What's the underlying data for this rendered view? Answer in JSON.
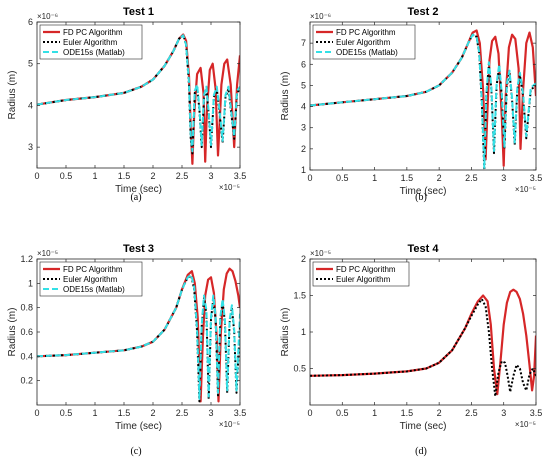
{
  "series_styles": {
    "FD PC Algorithm": {
      "color": "#d62728",
      "dash": "",
      "width": 2.2
    },
    "Euler Algorithm": {
      "color": "#000000",
      "dash": "2,2",
      "width": 2.0
    },
    "ODE15s (Matlab)": {
      "color": "#33e0e6",
      "dash": "6,3",
      "width": 2.0
    }
  },
  "chart_data": [
    {
      "type": "line",
      "title": "Test 1",
      "caption": "(a)",
      "xlabel": "Time (sec)",
      "ylabel": "Radius (m)",
      "x_exponent_label": "×10⁻⁵",
      "y_exponent_label": "×10⁻⁶",
      "xlim": [
        0,
        3.5
      ],
      "ylim": [
        2.5,
        6
      ],
      "xticks": [
        0,
        0.5,
        1,
        1.5,
        2,
        2.5,
        3,
        3.5
      ],
      "xtick_labels": [
        "0",
        "0.5",
        "1",
        "1.5",
        "2",
        "2.5",
        "3",
        "3.5"
      ],
      "yticks": [
        3,
        4,
        5,
        6
      ],
      "ytick_labels": [
        "3",
        "4",
        "5",
        "6"
      ],
      "legend": "top-left",
      "series": [
        {
          "name": "FD PC Algorithm",
          "x": [
            0,
            0.5,
            1,
            1.5,
            1.8,
            2.0,
            2.2,
            2.35,
            2.45,
            2.52,
            2.57,
            2.62,
            2.65,
            2.68,
            2.71,
            2.76,
            2.82,
            2.87,
            2.9,
            2.93,
            2.98,
            3.03,
            3.08,
            3.12,
            3.15,
            3.18,
            3.23,
            3.28,
            3.34,
            3.4,
            3.45,
            3.5
          ],
          "y": [
            4.02,
            4.13,
            4.2,
            4.3,
            4.45,
            4.62,
            4.95,
            5.3,
            5.6,
            5.7,
            5.55,
            4.7,
            3.5,
            2.6,
            3.8,
            4.75,
            4.9,
            4.3,
            2.65,
            3.9,
            4.85,
            5.0,
            4.4,
            2.8,
            3.6,
            4.5,
            5.0,
            5.1,
            4.5,
            3.0,
            4.5,
            5.2
          ]
        },
        {
          "name": "Euler Algorithm",
          "x": [
            0,
            0.5,
            1,
            1.5,
            1.8,
            2.0,
            2.2,
            2.35,
            2.45,
            2.52,
            2.57,
            2.62,
            2.65,
            2.68,
            2.72,
            2.76,
            2.8,
            2.84,
            2.88,
            2.92,
            2.96,
            3.0,
            3.05,
            3.1,
            3.15,
            3.2,
            3.25,
            3.3,
            3.35,
            3.4,
            3.45,
            3.5
          ],
          "y": [
            4.02,
            4.13,
            4.2,
            4.3,
            4.45,
            4.62,
            4.95,
            5.3,
            5.6,
            5.68,
            5.45,
            4.5,
            3.2,
            2.85,
            4.3,
            4.45,
            3.9,
            3.0,
            4.2,
            4.4,
            3.8,
            3.0,
            4.2,
            4.4,
            3.8,
            3.1,
            4.2,
            4.4,
            3.8,
            3.2,
            4.3,
            4.4
          ]
        },
        {
          "name": "ODE15s (Matlab)",
          "x": [
            0,
            0.5,
            1,
            1.5,
            1.8,
            2.0,
            2.2,
            2.35,
            2.45,
            2.52,
            2.57,
            2.62,
            2.65,
            2.68,
            2.72,
            2.76,
            2.8,
            2.84,
            2.88,
            2.92,
            2.96,
            3.0,
            3.05,
            3.1,
            3.15,
            3.2,
            3.25,
            3.3,
            3.35,
            3.4,
            3.45,
            3.5
          ],
          "y": [
            4.02,
            4.13,
            4.2,
            4.3,
            4.45,
            4.62,
            4.95,
            5.3,
            5.6,
            5.68,
            5.45,
            4.55,
            3.3,
            2.9,
            4.35,
            4.5,
            3.95,
            3.05,
            4.25,
            4.45,
            3.85,
            3.05,
            4.25,
            4.45,
            3.85,
            3.15,
            4.25,
            4.45,
            3.85,
            3.25,
            4.35,
            4.45
          ]
        }
      ]
    },
    {
      "type": "line",
      "title": "Test 2",
      "caption": "(b)",
      "xlabel": "Time (sec)",
      "ylabel": "Radius (m)",
      "x_exponent_label": "×10⁻⁵",
      "y_exponent_label": "×10⁻⁶",
      "xlim": [
        0,
        3.5
      ],
      "ylim": [
        1,
        8
      ],
      "xticks": [
        0,
        0.5,
        1,
        1.5,
        2,
        2.5,
        3,
        3.5
      ],
      "xtick_labels": [
        "0",
        "0.5",
        "1",
        "1.5",
        "2",
        "2.5",
        "3",
        "3.5"
      ],
      "yticks": [
        1,
        2,
        3,
        4,
        5,
        6,
        7
      ],
      "ytick_labels": [
        "1",
        "2",
        "3",
        "4",
        "5",
        "6",
        "7"
      ],
      "legend": "top-left",
      "series": [
        {
          "name": "FD PC Algorithm",
          "x": [
            0,
            0.5,
            1,
            1.5,
            1.8,
            2.0,
            2.2,
            2.35,
            2.45,
            2.52,
            2.58,
            2.63,
            2.68,
            2.72,
            2.75,
            2.78,
            2.82,
            2.87,
            2.92,
            2.97,
            3.0,
            3.03,
            3.08,
            3.13,
            3.18,
            3.23,
            3.26,
            3.3,
            3.35,
            3.4,
            3.45,
            3.5
          ],
          "y": [
            4.05,
            4.2,
            4.35,
            4.5,
            4.7,
            5.0,
            5.6,
            6.3,
            7.0,
            7.5,
            7.6,
            7.0,
            4.8,
            1.5,
            4.0,
            6.2,
            7.1,
            7.3,
            6.5,
            3.5,
            1.2,
            4.5,
            6.8,
            7.4,
            7.2,
            5.8,
            2.0,
            4.8,
            7.0,
            7.5,
            6.8,
            4.5
          ]
        },
        {
          "name": "Euler Algorithm",
          "x": [
            0,
            0.5,
            1,
            1.5,
            1.8,
            2.0,
            2.2,
            2.35,
            2.45,
            2.52,
            2.58,
            2.62,
            2.66,
            2.7,
            2.73,
            2.77,
            2.81,
            2.85,
            2.89,
            2.93,
            2.97,
            3.01,
            3.05,
            3.09,
            3.13,
            3.17,
            3.21,
            3.25,
            3.3,
            3.35,
            3.42,
            3.5
          ],
          "y": [
            4.05,
            4.2,
            4.35,
            4.5,
            4.7,
            5.0,
            5.6,
            6.3,
            7.0,
            7.4,
            7.3,
            6.5,
            4.2,
            1.0,
            4.5,
            6.0,
            4.8,
            1.8,
            5.0,
            5.9,
            4.5,
            2.0,
            5.0,
            5.6,
            4.3,
            2.2,
            4.8,
            5.5,
            4.5,
            2.5,
            4.8,
            5.0
          ]
        },
        {
          "name": "ODE15s (Matlab)",
          "x": [
            0,
            0.5,
            1,
            1.5,
            1.8,
            2.0,
            2.2,
            2.35,
            2.45,
            2.52,
            2.58,
            2.62,
            2.66,
            2.7,
            2.73,
            2.77,
            2.81,
            2.85,
            2.89,
            2.93,
            2.97,
            3.01,
            3.05,
            3.09,
            3.13,
            3.17,
            3.21,
            3.25,
            3.3,
            3.35,
            3.42,
            3.5
          ],
          "y": [
            4.05,
            4.2,
            4.35,
            4.5,
            4.7,
            5.0,
            5.6,
            6.3,
            7.0,
            7.4,
            7.3,
            6.55,
            4.3,
            1.1,
            4.6,
            6.1,
            4.9,
            1.9,
            5.1,
            6.0,
            4.6,
            2.1,
            5.1,
            5.7,
            4.4,
            2.3,
            4.9,
            5.6,
            4.6,
            2.6,
            4.9,
            5.1
          ]
        }
      ]
    },
    {
      "type": "line",
      "title": "Test 3",
      "caption": "(c)",
      "xlabel": "Time (sec)",
      "ylabel": "Radius (m)",
      "x_exponent_label": "×10⁻⁵",
      "y_exponent_label": "×10⁻⁵",
      "xlim": [
        0,
        3.5
      ],
      "ylim": [
        0,
        1.2
      ],
      "xticks": [
        0,
        0.5,
        1,
        1.5,
        2,
        2.5,
        3,
        3.5
      ],
      "xtick_labels": [
        "0",
        "0.5",
        "1",
        "1.5",
        "2",
        "2.5",
        "3",
        "3.5"
      ],
      "yticks": [
        0.2,
        0.4,
        0.6,
        0.8,
        1.0,
        1.2
      ],
      "ytick_labels": [
        "0.2",
        "0.4",
        "0.6",
        "0.8",
        "1",
        "1.2"
      ],
      "legend": "top-left",
      "series": [
        {
          "name": "FD PC Algorithm",
          "x": [
            0,
            0.5,
            1,
            1.5,
            1.8,
            2.0,
            2.2,
            2.4,
            2.5,
            2.6,
            2.67,
            2.72,
            2.77,
            2.82,
            2.86,
            2.9,
            2.95,
            3.0,
            3.05,
            3.1,
            3.13,
            3.17,
            3.22,
            3.27,
            3.32,
            3.37,
            3.42,
            3.47,
            3.5
          ],
          "y": [
            0.4,
            0.41,
            0.43,
            0.45,
            0.48,
            0.52,
            0.62,
            0.8,
            0.95,
            1.07,
            1.1,
            1.0,
            0.72,
            0.03,
            0.55,
            0.9,
            1.03,
            1.05,
            0.92,
            0.55,
            0.03,
            0.6,
            0.95,
            1.08,
            1.12,
            1.1,
            1.02,
            0.9,
            0.8
          ]
        },
        {
          "name": "Euler Algorithm",
          "x": [
            0,
            0.5,
            1,
            1.5,
            1.8,
            2.0,
            2.2,
            2.4,
            2.5,
            2.6,
            2.66,
            2.71,
            2.76,
            2.8,
            2.84,
            2.88,
            2.92,
            2.96,
            3.0,
            3.04,
            3.08,
            3.12,
            3.16,
            3.2,
            3.24,
            3.28,
            3.32,
            3.36,
            3.4,
            3.44,
            3.5
          ],
          "y": [
            0.4,
            0.41,
            0.43,
            0.45,
            0.48,
            0.52,
            0.62,
            0.8,
            0.95,
            1.05,
            1.06,
            0.95,
            0.6,
            0.03,
            0.65,
            0.88,
            0.75,
            0.05,
            0.7,
            0.88,
            0.7,
            0.08,
            0.7,
            0.85,
            0.68,
            0.1,
            0.68,
            0.8,
            0.6,
            0.1,
            0.65
          ]
        },
        {
          "name": "ODE15s (Matlab)",
          "x": [
            0,
            0.5,
            1,
            1.5,
            1.8,
            2.0,
            2.2,
            2.4,
            2.5,
            2.6,
            2.66,
            2.71,
            2.76,
            2.8,
            2.84,
            2.88,
            2.92,
            2.96,
            3.0,
            3.04,
            3.08,
            3.12,
            3.16,
            3.2,
            3.24,
            3.28,
            3.32,
            3.36,
            3.4,
            3.44,
            3.5
          ],
          "y": [
            0.4,
            0.41,
            0.43,
            0.45,
            0.48,
            0.52,
            0.62,
            0.8,
            0.95,
            1.05,
            1.07,
            0.97,
            0.62,
            0.05,
            0.66,
            0.9,
            0.78,
            0.07,
            0.72,
            0.9,
            0.73,
            0.1,
            0.72,
            0.87,
            0.7,
            0.12,
            0.7,
            0.82,
            0.62,
            0.12,
            0.75
          ]
        }
      ]
    },
    {
      "type": "line",
      "title": "Test 4",
      "caption": "(d)",
      "xlabel": "Time (sec)",
      "ylabel": "Radius (m)",
      "x_exponent_label": "×10⁻⁵",
      "y_exponent_label": "×10⁻⁵",
      "xlim": [
        0,
        3.5
      ],
      "ylim": [
        0,
        2
      ],
      "xticks": [
        0,
        0.5,
        1,
        1.5,
        2,
        2.5,
        3,
        3.5
      ],
      "xtick_labels": [
        "0",
        "0.5",
        "1",
        "1.5",
        "2",
        "2.5",
        "3",
        "3.5"
      ],
      "yticks": [
        0.5,
        1,
        1.5,
        2
      ],
      "ytick_labels": [
        "0.5",
        "1",
        "1.5",
        "2"
      ],
      "legend": "top-left",
      "series": [
        {
          "name": "FD PC Algorithm",
          "x": [
            0,
            0.5,
            1,
            1.5,
            1.8,
            2.0,
            2.2,
            2.4,
            2.5,
            2.6,
            2.68,
            2.75,
            2.8,
            2.85,
            2.9,
            2.95,
            3.0,
            3.05,
            3.1,
            3.15,
            3.2,
            3.25,
            3.3,
            3.35,
            3.4,
            3.44,
            3.47,
            3.5
          ],
          "y": [
            0.4,
            0.41,
            0.43,
            0.46,
            0.5,
            0.58,
            0.75,
            1.05,
            1.25,
            1.42,
            1.5,
            1.42,
            1.1,
            0.5,
            0.15,
            0.6,
            1.1,
            1.4,
            1.55,
            1.58,
            1.55,
            1.45,
            1.25,
            0.95,
            0.55,
            0.2,
            0.4,
            0.95
          ]
        },
        {
          "name": "Euler Algorithm",
          "x": [
            0,
            0.5,
            1,
            1.5,
            1.8,
            2.0,
            2.2,
            2.4,
            2.5,
            2.6,
            2.66,
            2.72,
            2.77,
            2.82,
            2.87,
            2.92,
            2.97,
            3.02,
            3.06,
            3.1,
            3.15,
            3.2,
            3.25,
            3.3,
            3.35,
            3.4,
            3.45,
            3.5
          ],
          "y": [
            0.4,
            0.41,
            0.43,
            0.46,
            0.5,
            0.58,
            0.75,
            1.05,
            1.22,
            1.38,
            1.45,
            1.35,
            1.0,
            0.5,
            0.12,
            0.45,
            0.6,
            0.58,
            0.4,
            0.18,
            0.4,
            0.55,
            0.5,
            0.3,
            0.2,
            0.42,
            0.5,
            0.4
          ]
        }
      ]
    }
  ]
}
